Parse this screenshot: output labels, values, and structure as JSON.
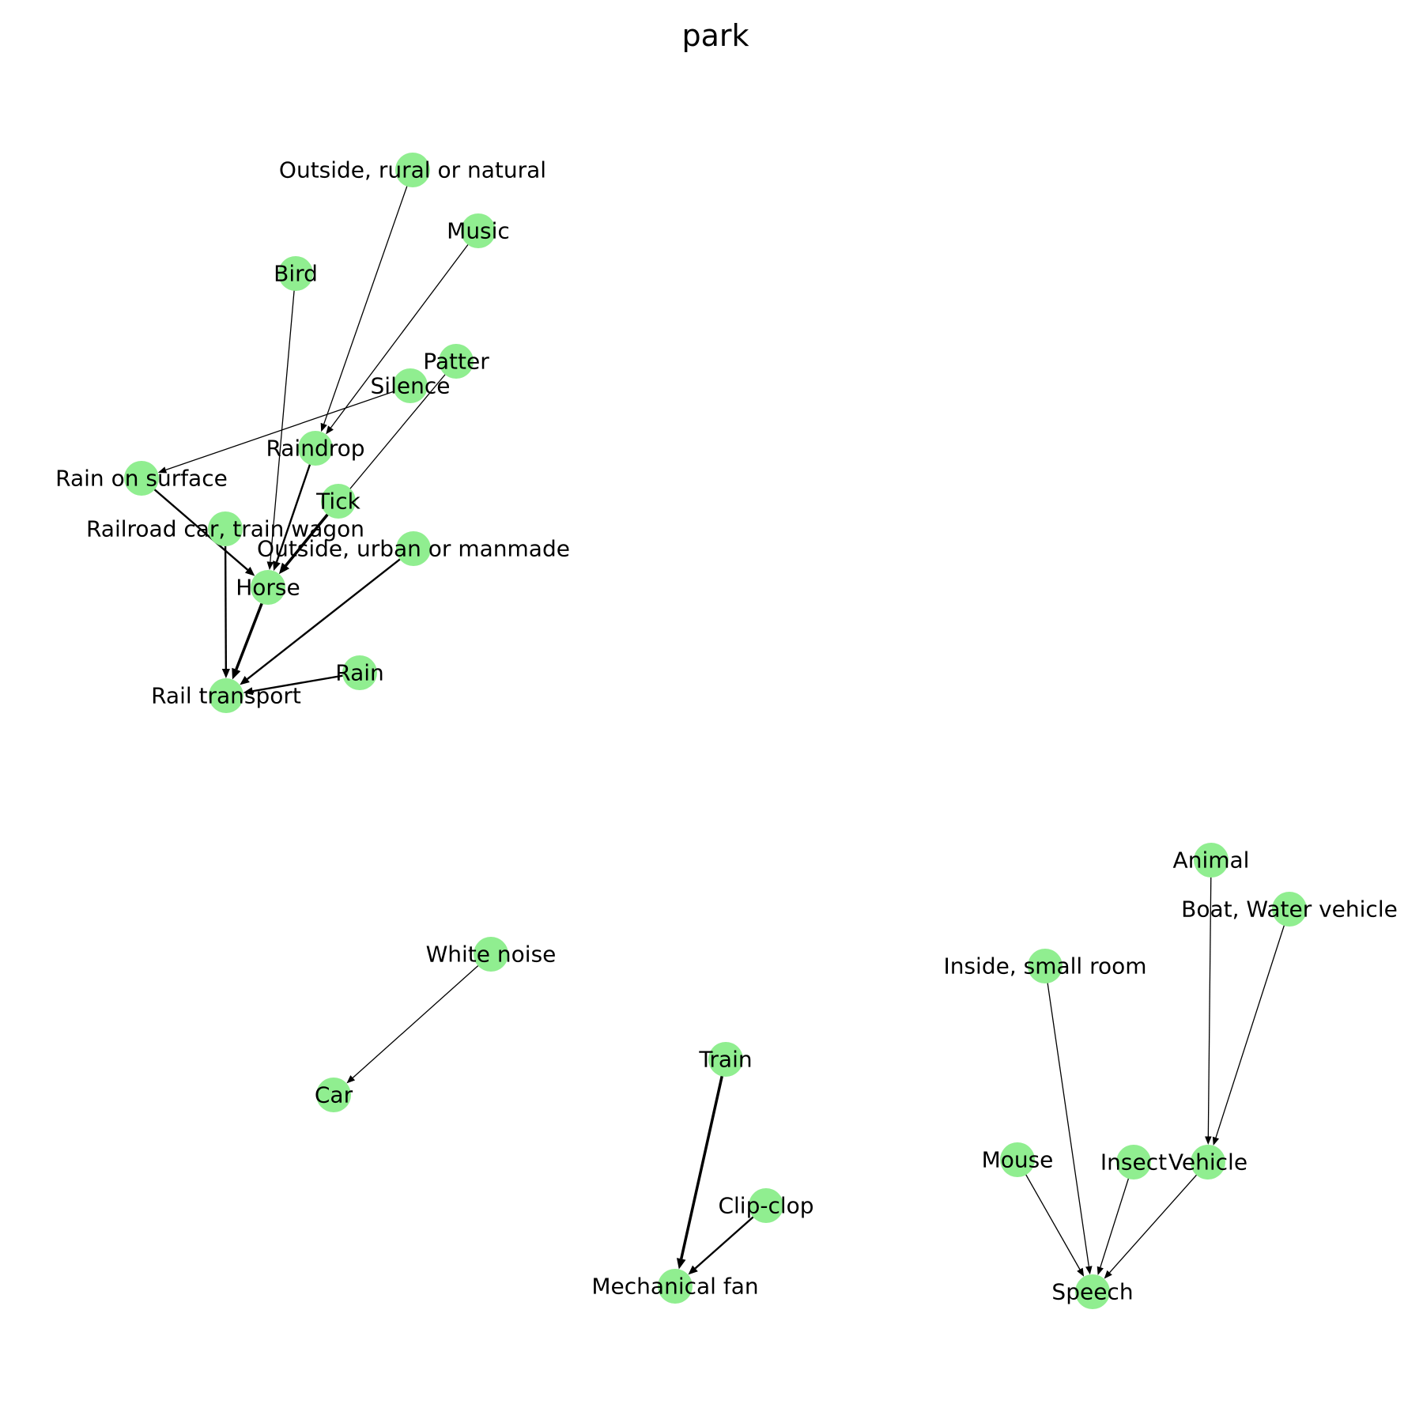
{
  "graph": {
    "title": "park",
    "node_color": "#90ee90",
    "edge_color": "#000000",
    "nodes": [
      {
        "id": "outside_rural",
        "label": "Outside, rural or natural"
      },
      {
        "id": "music",
        "label": "Music"
      },
      {
        "id": "bird",
        "label": "Bird"
      },
      {
        "id": "patter",
        "label": "Patter"
      },
      {
        "id": "silence",
        "label": "Silence"
      },
      {
        "id": "raindrop",
        "label": "Raindrop"
      },
      {
        "id": "rain_on_surface",
        "label": "Rain on surface"
      },
      {
        "id": "tick",
        "label": "Tick"
      },
      {
        "id": "railroad_car",
        "label": "Railroad car, train wagon"
      },
      {
        "id": "outside_urban",
        "label": "Outside, urban or manmade"
      },
      {
        "id": "horse",
        "label": "Horse"
      },
      {
        "id": "rain",
        "label": "Rain"
      },
      {
        "id": "rail_transport",
        "label": "Rail transport"
      },
      {
        "id": "white_noise",
        "label": "White noise"
      },
      {
        "id": "car",
        "label": "Car"
      },
      {
        "id": "train",
        "label": "Train"
      },
      {
        "id": "clip_clop",
        "label": "Clip-clop"
      },
      {
        "id": "mechanical_fan",
        "label": "Mechanical fan"
      },
      {
        "id": "animal",
        "label": "Animal"
      },
      {
        "id": "boat",
        "label": "Boat, Water vehicle"
      },
      {
        "id": "inside_small_room",
        "label": "Inside, small room"
      },
      {
        "id": "mouse",
        "label": "Mouse"
      },
      {
        "id": "insect",
        "label": "Insect"
      },
      {
        "id": "vehicle",
        "label": "Vehicle"
      },
      {
        "id": "speech",
        "label": "Speech"
      }
    ],
    "edges": [
      {
        "source": "outside_rural",
        "target": "raindrop",
        "weight": 1
      },
      {
        "source": "music",
        "target": "raindrop",
        "weight": 1
      },
      {
        "source": "bird",
        "target": "horse",
        "weight": 1
      },
      {
        "source": "patter",
        "target": "horse",
        "weight": 1
      },
      {
        "source": "silence",
        "target": "rain_on_surface",
        "weight": 1
      },
      {
        "source": "raindrop",
        "target": "horse",
        "weight": 2
      },
      {
        "source": "rain_on_surface",
        "target": "horse",
        "weight": 2
      },
      {
        "source": "tick",
        "target": "horse",
        "weight": 3
      },
      {
        "source": "railroad_car",
        "target": "rail_transport",
        "weight": 2
      },
      {
        "source": "outside_urban",
        "target": "rail_transport",
        "weight": 2
      },
      {
        "source": "horse",
        "target": "rail_transport",
        "weight": 3
      },
      {
        "source": "rain",
        "target": "rail_transport",
        "weight": 2
      },
      {
        "source": "white_noise",
        "target": "car",
        "weight": 1
      },
      {
        "source": "train",
        "target": "mechanical_fan",
        "weight": 3
      },
      {
        "source": "clip_clop",
        "target": "mechanical_fan",
        "weight": 2
      },
      {
        "source": "animal",
        "target": "vehicle",
        "weight": 1
      },
      {
        "source": "boat",
        "target": "vehicle",
        "weight": 1
      },
      {
        "source": "inside_small_room",
        "target": "speech",
        "weight": 1
      },
      {
        "source": "mouse",
        "target": "speech",
        "weight": 1
      },
      {
        "source": "insect",
        "target": "speech",
        "weight": 1
      },
      {
        "source": "vehicle",
        "target": "speech",
        "weight": 1
      }
    ]
  }
}
